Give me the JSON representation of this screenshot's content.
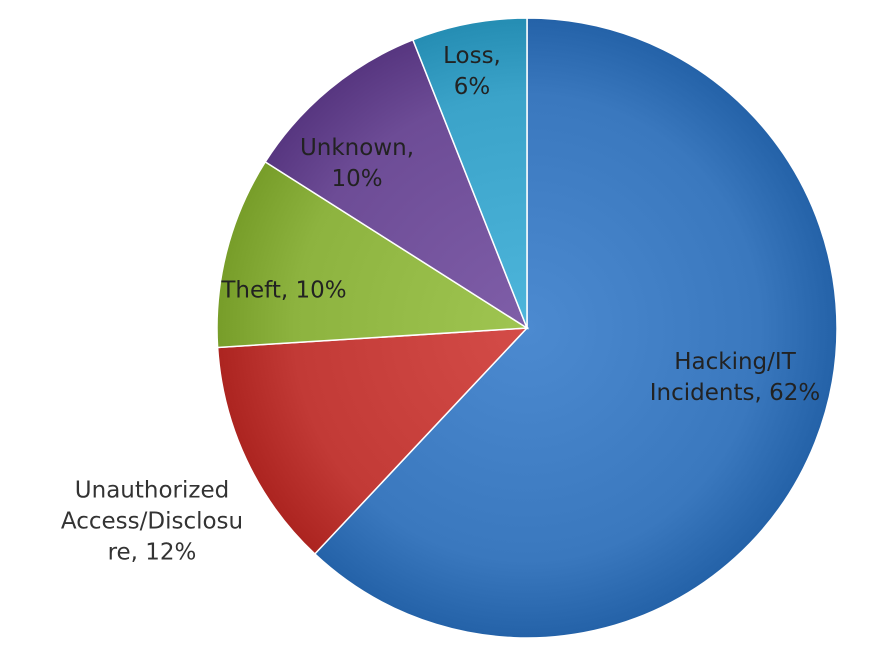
{
  "chart_data": {
    "type": "pie",
    "title": "",
    "start_angle_deg": 0,
    "direction": "clockwise",
    "slices": [
      {
        "name": "Hacking/IT Incidents",
        "value": 62,
        "color": "#3a78be",
        "label_lines": [
          "Hacking/IT",
          "Incidents, 62%"
        ]
      },
      {
        "name": "Unauthorized Access/Disclosure",
        "value": 12,
        "color": "#c23a36",
        "label_lines": [
          "Unauthorized",
          "Access/Disclosu",
          "re, 12%"
        ]
      },
      {
        "name": "Theft",
        "value": 10,
        "color": "#8db33f",
        "label_lines": [
          "Theft, 10%"
        ]
      },
      {
        "name": "Unknown",
        "value": 10,
        "color": "#6d4c96",
        "label_lines": [
          "Unknown,",
          "10%"
        ]
      },
      {
        "name": "Loss",
        "value": 6,
        "color": "#3ba3c9",
        "label_lines": [
          "Loss,",
          "6%"
        ]
      }
    ]
  }
}
